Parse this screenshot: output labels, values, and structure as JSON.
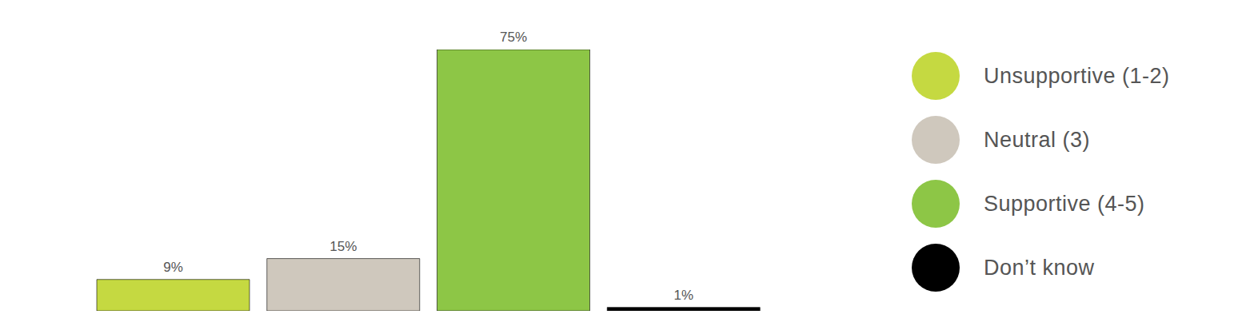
{
  "chart_data": {
    "type": "bar",
    "categories": [
      "Unsupportive (1-2)",
      "Neutral (3)",
      "Supportive (4-5)",
      "Don’t know"
    ],
    "values": [
      9,
      15,
      75,
      1
    ],
    "value_labels": [
      "9%",
      "15%",
      "75%",
      "1%"
    ],
    "colors": [
      "#c5d941",
      "#cfc8bd",
      "#8dc646",
      "#000000"
    ],
    "data_labels": true,
    "tick_labels": false,
    "legend": "right"
  }
}
